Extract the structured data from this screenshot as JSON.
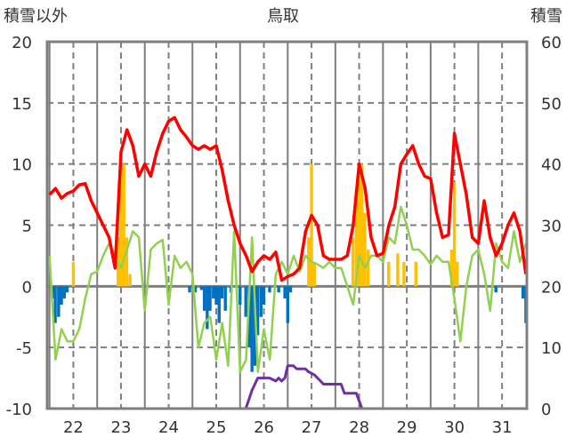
{
  "chart_data": {
    "type": "line",
    "title": "鳥取",
    "ylabel_left": "積雪以外",
    "ylabel_right": "積雪",
    "xlabel": "",
    "ylim_left": [
      -10,
      20
    ],
    "ylim_right": [
      0,
      60
    ],
    "xlim": [
      21.45,
      31.52
    ],
    "yticks_left": [
      "20",
      "15",
      "10",
      "5",
      "0",
      "-5",
      "-10"
    ],
    "yticks_right": [
      "60",
      "50",
      "40",
      "30",
      "20",
      "10",
      "0"
    ],
    "xticks": [
      "22",
      "23",
      "24",
      "25",
      "26",
      "27",
      "28",
      "29",
      "30",
      "31"
    ],
    "grid": true,
    "colors": {
      "red": "#ff0000",
      "green": "#92d050",
      "orange": "#ffc000",
      "blue": "#0070c0",
      "purple": "#7030a0",
      "frame": "#7f7f7f"
    },
    "line_x_start": 21.5,
    "line_x_step": 0.125,
    "series": [
      {
        "name": "red",
        "axis": "left",
        "kind": "line",
        "values": [
          7.5,
          8.0,
          7.2,
          7.6,
          7.8,
          8.3,
          8.4,
          7.0,
          6.0,
          5.0,
          4.0,
          1.5,
          11,
          12.8,
          11.5,
          9,
          10,
          9,
          11,
          12.5,
          13.5,
          13.8,
          12.8,
          12.2,
          11.5,
          11.2,
          11.5,
          11.2,
          11.5,
          9.5,
          7,
          5,
          3.5,
          2.5,
          1.2,
          2.0,
          2.5,
          2.2,
          2.8,
          0.5,
          0.8,
          1.0,
          1.5,
          4.5,
          5.8,
          5,
          2.5,
          2.2,
          2.2,
          2.2,
          2.5,
          5,
          10,
          8,
          4,
          2.5,
          2.7,
          5,
          6.5,
          10,
          10.8,
          11.5,
          10,
          9,
          8.8,
          6,
          4,
          4.2,
          12.5,
          10,
          7.5,
          4,
          3.5,
          7,
          4,
          2.5,
          3.5,
          5,
          6.0,
          4.5,
          1.0
        ]
      },
      {
        "name": "green",
        "axis": "left",
        "kind": "line",
        "values": [
          2.5,
          -6,
          -3.5,
          -4.5,
          -4.5,
          -3.5,
          -1,
          1.0,
          1.2,
          2.5,
          3.5,
          2.5,
          1.5,
          3,
          4.5,
          4.0,
          -2,
          3.0,
          3.5,
          3.8,
          -1.5,
          2.5,
          1.5,
          2,
          1.0,
          -5,
          -3,
          -2.5,
          -6,
          -3,
          -6.5,
          4.5,
          -7,
          -6,
          4,
          -7,
          -3.5,
          -6,
          1,
          2.0,
          1,
          2.5,
          1.2,
          2.5,
          2.0,
          1.8,
          1.5,
          2.0,
          1.5,
          1.5,
          0,
          -1.5,
          2.5,
          1.5,
          2.5,
          2.5,
          2.0,
          4,
          3.5,
          6.5,
          5,
          3,
          3,
          2.5,
          1.8,
          2.5,
          2,
          2,
          -1,
          -4.5,
          0,
          2.5,
          3.0,
          1,
          -2,
          3.5,
          2,
          1.5,
          4.5,
          2,
          3.5
        ]
      },
      {
        "name": "orange",
        "axis": "left",
        "kind": "bar",
        "points": [
          [
            22.0,
            2
          ],
          [
            22.94,
            4
          ],
          [
            23.0,
            10
          ],
          [
            23.06,
            10
          ],
          [
            23.12,
            4
          ],
          [
            23.19,
            1
          ],
          [
            26.94,
            4
          ],
          [
            27.0,
            10
          ],
          [
            27.06,
            2
          ],
          [
            27.87,
            4
          ],
          [
            27.94,
            8
          ],
          [
            28.0,
            10
          ],
          [
            28.06,
            10
          ],
          [
            28.12,
            6
          ],
          [
            28.19,
            3
          ],
          [
            28.62,
            2
          ],
          [
            28.81,
            2.7
          ],
          [
            28.94,
            2
          ],
          [
            29.19,
            2
          ],
          [
            29.94,
            3
          ],
          [
            30.0,
            8.5
          ],
          [
            30.06,
            2
          ]
        ]
      },
      {
        "name": "blue",
        "axis": "left",
        "kind": "bar",
        "points": [
          [
            21.56,
            -1
          ],
          [
            21.62,
            -3
          ],
          [
            21.69,
            -2.5
          ],
          [
            21.75,
            -1.5
          ],
          [
            21.81,
            -1
          ],
          [
            21.87,
            -0.5
          ],
          [
            24.44,
            -0.5
          ],
          [
            24.56,
            -0.5
          ],
          [
            24.69,
            -0.3
          ],
          [
            24.75,
            -2
          ],
          [
            24.81,
            -3.5
          ],
          [
            24.87,
            -2
          ],
          [
            24.94,
            -1
          ],
          [
            25.0,
            -1.5
          ],
          [
            25.06,
            -3
          ],
          [
            25.12,
            -1
          ],
          [
            25.19,
            -2
          ],
          [
            25.31,
            -0.5
          ],
          [
            25.5,
            -1.5
          ],
          [
            25.62,
            -2.5
          ],
          [
            25.69,
            -5
          ],
          [
            25.75,
            -7
          ],
          [
            25.81,
            -6.5
          ],
          [
            25.87,
            -4
          ],
          [
            25.94,
            -2.5
          ],
          [
            26.0,
            -1.5
          ],
          [
            26.12,
            -0.5
          ],
          [
            26.31,
            -0.5
          ],
          [
            26.44,
            -1
          ],
          [
            26.5,
            -3
          ],
          [
            26.56,
            -0.5
          ],
          [
            30.87,
            -0.5
          ],
          [
            31.44,
            -1
          ],
          [
            31.5,
            -3
          ]
        ]
      },
      {
        "name": "purple",
        "axis": "right",
        "kind": "line",
        "points": [
          [
            21.45,
            0
          ],
          [
            25.62,
            0
          ],
          [
            25.75,
            3
          ],
          [
            25.87,
            5
          ],
          [
            26.0,
            5
          ],
          [
            26.12,
            5
          ],
          [
            26.25,
            4.5
          ],
          [
            26.31,
            5
          ],
          [
            26.37,
            4.5
          ],
          [
            26.44,
            5
          ],
          [
            26.5,
            7
          ],
          [
            26.62,
            7
          ],
          [
            26.69,
            6.5
          ],
          [
            26.87,
            6.5
          ],
          [
            26.94,
            6
          ],
          [
            27.06,
            5.5
          ],
          [
            27.19,
            4.5
          ],
          [
            27.25,
            4
          ],
          [
            27.62,
            4
          ],
          [
            27.69,
            2.5
          ],
          [
            27.94,
            2.5
          ],
          [
            28.06,
            0
          ],
          [
            31.52,
            0
          ]
        ]
      }
    ]
  }
}
